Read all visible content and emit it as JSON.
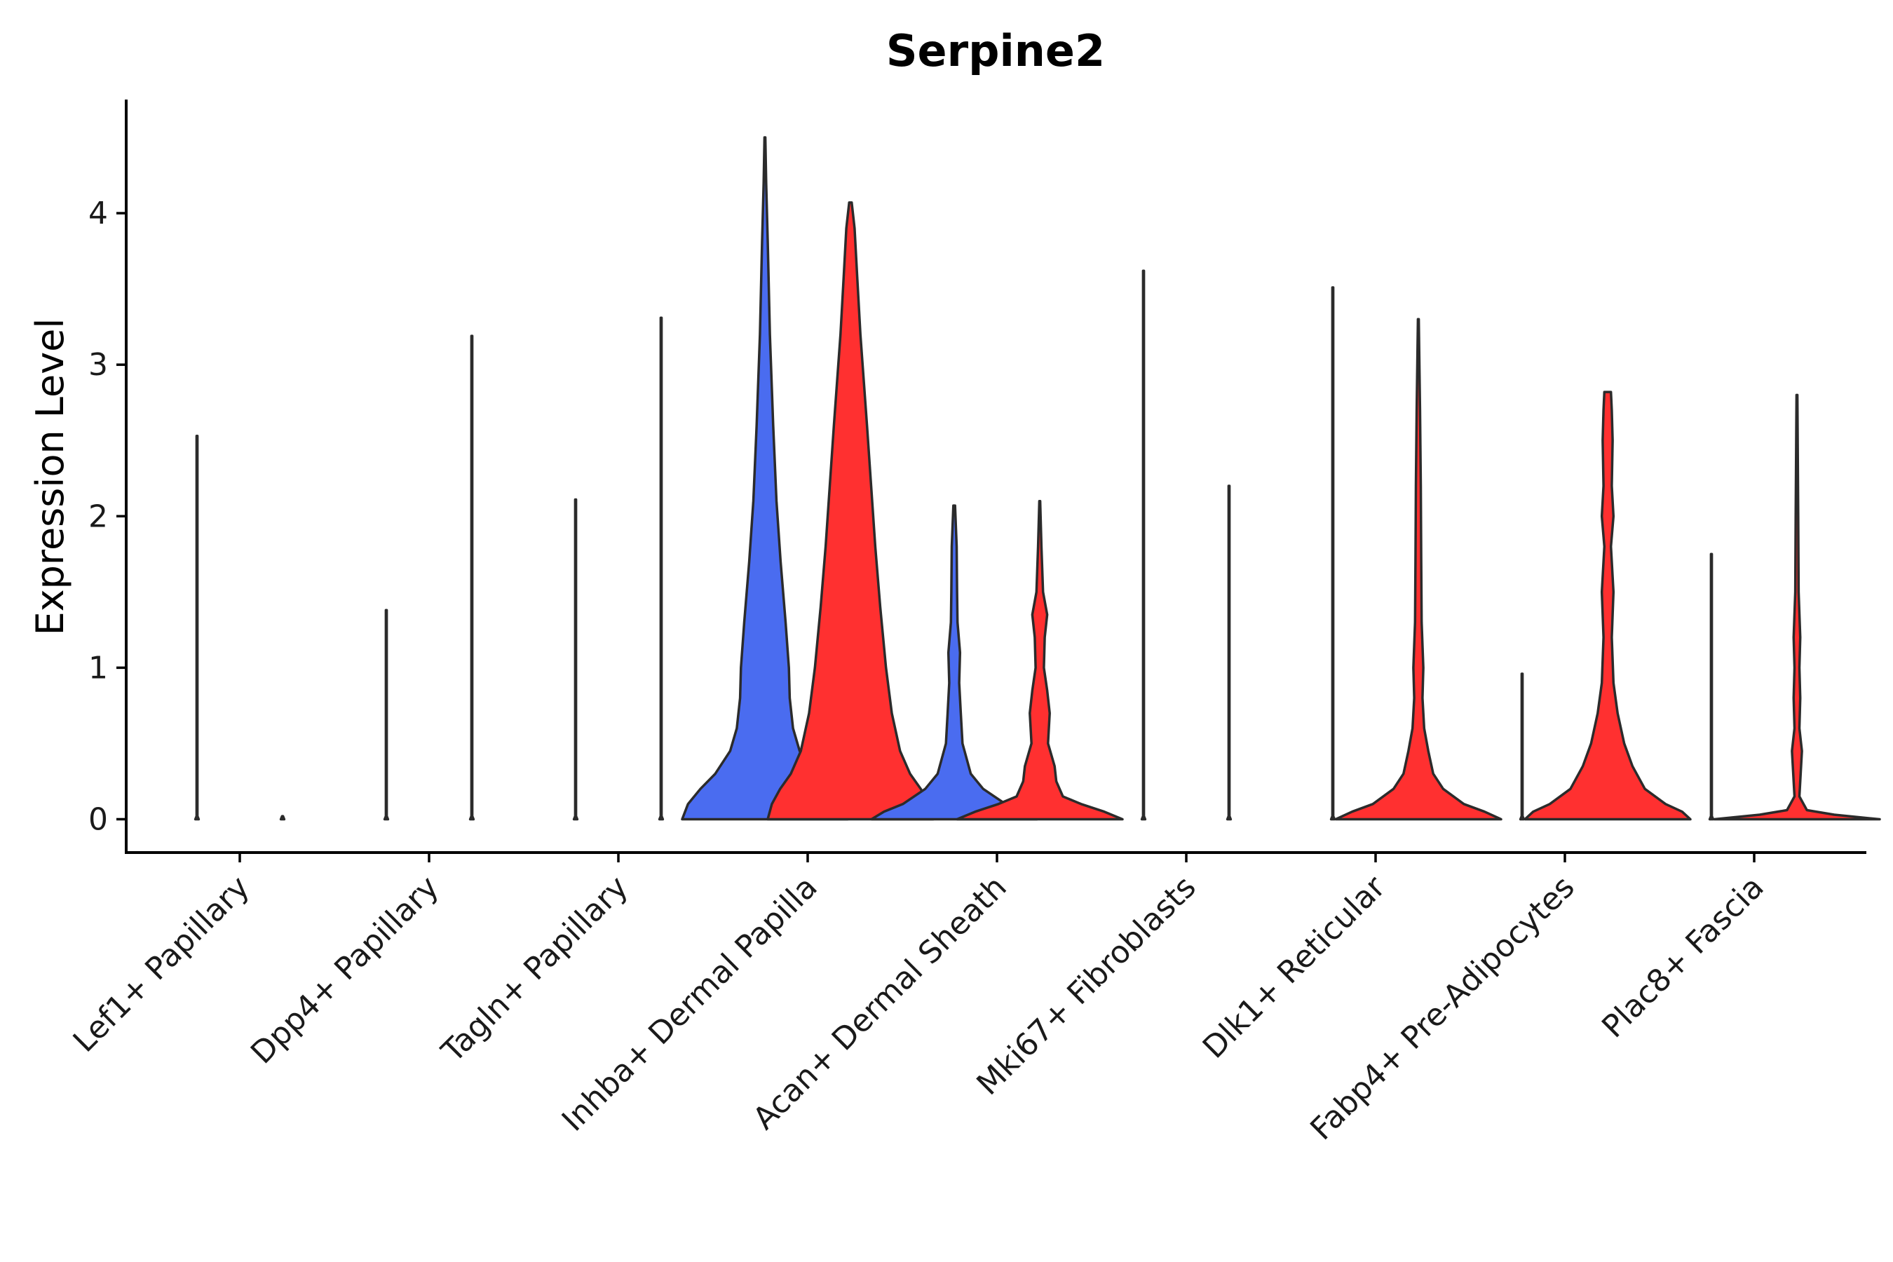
{
  "chart_data": {
    "type": "violin",
    "title": "Serpine2",
    "xlabel": "",
    "ylabel": "Expression Level",
    "ylim": [
      -0.22,
      4.75
    ],
    "yticks": [
      0,
      1,
      2,
      3,
      4
    ],
    "grid": false,
    "legend": "none",
    "colors": {
      "blue": "#4a6cf0",
      "red": "#ff3030",
      "outline": "#2b2b2b"
    },
    "categories": [
      "Lef1+ Papillary",
      "Dpp4+ Papillary",
      "Tagln+ Papillary",
      "Inhba+ Dermal Papilla",
      "Acan+ Dermal Sheath",
      "Mki67+ Fibroblasts",
      "Dlk1+ Reticular",
      "Fabp4+ Pre-Adipocytes",
      "Plac8+ Fascia"
    ],
    "violins": [
      {
        "category": "Lef1+ Papillary",
        "group": "blue",
        "max": 2.53,
        "profile": [
          [
            0,
            0.02
          ],
          [
            0.02,
            0.005
          ],
          [
            2.53,
            0.002
          ]
        ]
      },
      {
        "category": "Lef1+ Papillary",
        "group": "red",
        "max": 0.0,
        "profile": [
          [
            0,
            0.02
          ],
          [
            0.02,
            0.005
          ]
        ]
      },
      {
        "category": "Dpp4+ Papillary",
        "group": "blue",
        "max": 1.38,
        "profile": [
          [
            0,
            0.02
          ],
          [
            0.02,
            0.005
          ],
          [
            1.38,
            0.002
          ]
        ]
      },
      {
        "category": "Dpp4+ Papillary",
        "group": "red",
        "max": 3.19,
        "profile": [
          [
            0,
            0.02
          ],
          [
            0.02,
            0.005
          ],
          [
            3.19,
            0.002
          ]
        ]
      },
      {
        "category": "Tagln+ Papillary",
        "group": "blue",
        "max": 2.11,
        "profile": [
          [
            0,
            0.02
          ],
          [
            0.02,
            0.005
          ],
          [
            2.11,
            0.002
          ]
        ]
      },
      {
        "category": "Tagln+ Papillary",
        "group": "red",
        "max": 3.31,
        "profile": [
          [
            0,
            0.02
          ],
          [
            0.02,
            0.005
          ],
          [
            3.31,
            0.002
          ]
        ]
      },
      {
        "category": "Inhba+ Dermal Papilla",
        "group": "blue",
        "max": 4.5,
        "profile": [
          [
            0,
            1.0
          ],
          [
            0.1,
            0.93
          ],
          [
            0.2,
            0.78
          ],
          [
            0.3,
            0.6
          ],
          [
            0.45,
            0.42
          ],
          [
            0.6,
            0.34
          ],
          [
            0.8,
            0.3
          ],
          [
            1.0,
            0.29
          ],
          [
            1.3,
            0.25
          ],
          [
            1.7,
            0.19
          ],
          [
            2.1,
            0.14
          ],
          [
            2.6,
            0.1
          ],
          [
            3.2,
            0.06
          ],
          [
            3.8,
            0.035
          ],
          [
            4.2,
            0.015
          ],
          [
            4.5,
            0.003
          ]
        ]
      },
      {
        "category": "Inhba+ Dermal Papilla",
        "group": "red",
        "max": 4.07,
        "profile": [
          [
            0,
            1.0
          ],
          [
            0.1,
            0.95
          ],
          [
            0.2,
            0.85
          ],
          [
            0.3,
            0.72
          ],
          [
            0.45,
            0.6
          ],
          [
            0.7,
            0.5
          ],
          [
            1.0,
            0.43
          ],
          [
            1.4,
            0.36
          ],
          [
            1.8,
            0.3
          ],
          [
            2.2,
            0.25
          ],
          [
            2.6,
            0.2
          ],
          [
            2.9,
            0.16
          ],
          [
            3.2,
            0.12
          ],
          [
            3.6,
            0.08
          ],
          [
            3.9,
            0.05
          ],
          [
            4.07,
            0.015
          ]
        ]
      },
      {
        "category": "Acan+ Dermal Sheath",
        "group": "blue",
        "max": 2.07,
        "profile": [
          [
            0,
            1.0
          ],
          [
            0.05,
            0.85
          ],
          [
            0.1,
            0.62
          ],
          [
            0.2,
            0.35
          ],
          [
            0.3,
            0.2
          ],
          [
            0.5,
            0.1
          ],
          [
            0.7,
            0.08
          ],
          [
            0.9,
            0.06
          ],
          [
            1.1,
            0.07
          ],
          [
            1.3,
            0.04
          ],
          [
            1.5,
            0.035
          ],
          [
            1.8,
            0.03
          ],
          [
            2.07,
            0.01
          ]
        ]
      },
      {
        "category": "Acan+ Dermal Sheath",
        "group": "red",
        "max": 2.1,
        "profile": [
          [
            0,
            1.0
          ],
          [
            0.05,
            0.78
          ],
          [
            0.1,
            0.5
          ],
          [
            0.15,
            0.28
          ],
          [
            0.25,
            0.2
          ],
          [
            0.35,
            0.18
          ],
          [
            0.5,
            0.1
          ],
          [
            0.7,
            0.12
          ],
          [
            0.85,
            0.09
          ],
          [
            1.0,
            0.05
          ],
          [
            1.2,
            0.06
          ],
          [
            1.35,
            0.09
          ],
          [
            1.5,
            0.04
          ],
          [
            1.8,
            0.02
          ],
          [
            2.1,
            0.005
          ]
        ]
      },
      {
        "category": "Mki67+ Fibroblasts",
        "group": "blue",
        "max": 3.62,
        "profile": [
          [
            0,
            0.02
          ],
          [
            0.02,
            0.005
          ],
          [
            3.62,
            0.002
          ]
        ]
      },
      {
        "category": "Mki67+ Fibroblasts",
        "group": "red",
        "max": 2.2,
        "profile": [
          [
            0,
            0.02
          ],
          [
            0.02,
            0.005
          ],
          [
            2.2,
            0.002
          ]
        ]
      },
      {
        "category": "Dlk1+ Reticular",
        "group": "blue",
        "max": 3.51,
        "profile": [
          [
            0,
            0.02
          ],
          [
            0.02,
            0.005
          ],
          [
            3.51,
            0.002
          ]
        ]
      },
      {
        "category": "Dlk1+ Reticular",
        "group": "red",
        "max": 3.3,
        "profile": [
          [
            0,
            1.0
          ],
          [
            0.05,
            0.8
          ],
          [
            0.1,
            0.55
          ],
          [
            0.2,
            0.3
          ],
          [
            0.3,
            0.18
          ],
          [
            0.45,
            0.12
          ],
          [
            0.6,
            0.07
          ],
          [
            0.8,
            0.05
          ],
          [
            1.0,
            0.06
          ],
          [
            1.3,
            0.04
          ],
          [
            1.7,
            0.035
          ],
          [
            2.2,
            0.03
          ],
          [
            2.7,
            0.02
          ],
          [
            3.3,
            0.005
          ]
        ]
      },
      {
        "category": "Fabp4+ Pre-Adipocytes",
        "group": "blue",
        "max": 0.96,
        "profile": [
          [
            0,
            0.02
          ],
          [
            0.02,
            0.005
          ],
          [
            0.96,
            0.002
          ]
        ]
      },
      {
        "category": "Fabp4+ Pre-Adipocytes",
        "group": "red",
        "max": 2.82,
        "profile": [
          [
            0,
            1.0
          ],
          [
            0.05,
            0.9
          ],
          [
            0.1,
            0.7
          ],
          [
            0.2,
            0.45
          ],
          [
            0.35,
            0.3
          ],
          [
            0.5,
            0.2
          ],
          [
            0.7,
            0.12
          ],
          [
            0.9,
            0.07
          ],
          [
            1.2,
            0.05
          ],
          [
            1.5,
            0.07
          ],
          [
            1.8,
            0.04
          ],
          [
            2.0,
            0.07
          ],
          [
            2.2,
            0.05
          ],
          [
            2.5,
            0.06
          ],
          [
            2.7,
            0.05
          ],
          [
            2.82,
            0.04
          ]
        ]
      },
      {
        "category": "Plac8+ Fascia",
        "group": "blue",
        "max": 1.75,
        "profile": [
          [
            0,
            0.02
          ],
          [
            0.02,
            0.005
          ],
          [
            1.75,
            0.002
          ]
        ]
      },
      {
        "category": "Plac8+ Fascia",
        "group": "red",
        "max": 2.8,
        "profile": [
          [
            0,
            1.0
          ],
          [
            0.03,
            0.45
          ],
          [
            0.06,
            0.12
          ],
          [
            0.15,
            0.03
          ],
          [
            0.35,
            0.05
          ],
          [
            0.45,
            0.06
          ],
          [
            0.6,
            0.03
          ],
          [
            0.8,
            0.04
          ],
          [
            1.0,
            0.03
          ],
          [
            1.2,
            0.04
          ],
          [
            1.5,
            0.02
          ],
          [
            2.0,
            0.015
          ],
          [
            2.8,
            0.002
          ]
        ]
      }
    ]
  }
}
